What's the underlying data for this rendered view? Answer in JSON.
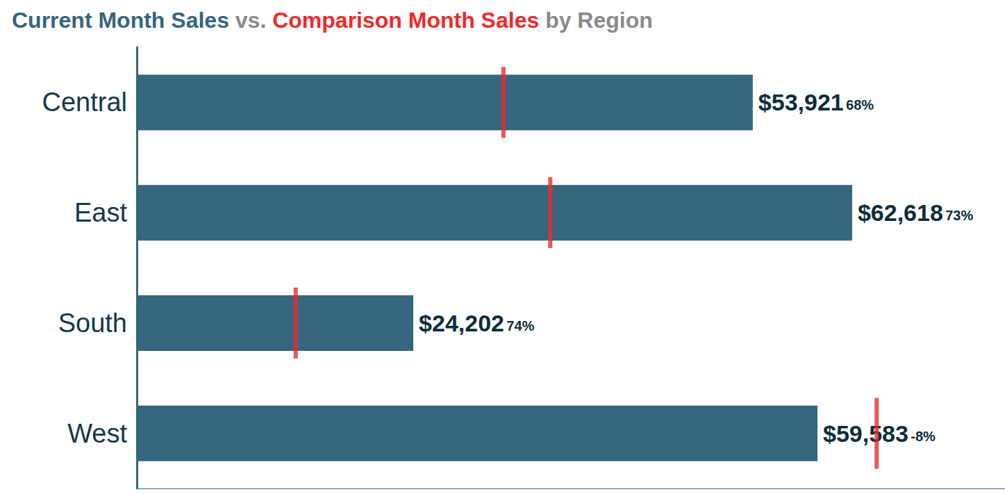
{
  "chart_data": {
    "type": "bar",
    "orientation": "horizontal",
    "title": "Current Month Sales vs. Comparison Month Sales by Region",
    "categories": [
      "Central",
      "East",
      "South",
      "West"
    ],
    "series": [
      {
        "name": "Current Month Sales",
        "type": "bar",
        "color": "#35657f",
        "values": [
          53921,
          62618,
          24202,
          59583
        ],
        "value_labels": [
          "$53,921",
          "$62,618",
          "$24,202",
          "$59,583"
        ],
        "change_labels": [
          "68%",
          "73%",
          "74%",
          "-8%"
        ]
      },
      {
        "name": "Comparison Month Sales",
        "type": "scatter",
        "marker": "line",
        "color": "#ee2a2a",
        "values": [
          32096,
          36195,
          13909,
          64764
        ]
      }
    ],
    "xlim": [
      0,
      76000
    ],
    "tick_labels": "y",
    "data_labels": true,
    "grid": false
  }
}
